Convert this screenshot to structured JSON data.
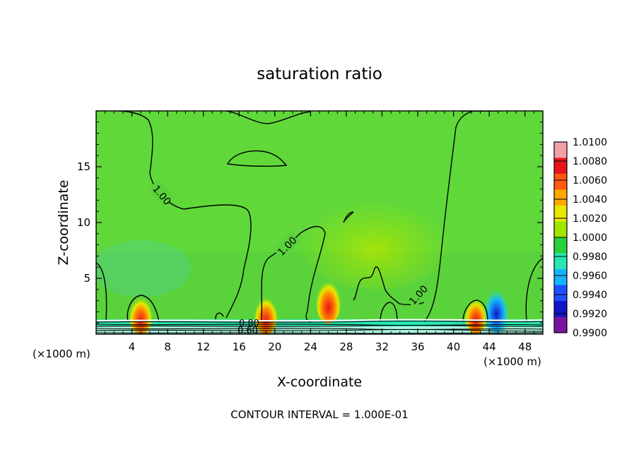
{
  "chart_data": {
    "type": "heatmap",
    "title": "saturation ratio",
    "xlabel": "X-coordinate",
    "ylabel": "Z-coordinate",
    "x_unit_left": "(×1000 m)",
    "x_unit_right": "(×1000 m)",
    "xlim": [
      0,
      50
    ],
    "ylim": [
      0,
      20
    ],
    "x_ticks": [
      "4",
      "8",
      "12",
      "16",
      "20",
      "24",
      "28",
      "32",
      "36",
      "40",
      "44",
      "48"
    ],
    "y_ticks": [
      "5",
      "10",
      "15"
    ],
    "colorbar_labels": [
      "1.0100",
      "1.0080",
      "1.0060",
      "1.0040",
      "1.0020",
      "1.0000",
      "0.9980",
      "0.9960",
      "0.9940",
      "0.9920",
      "0.9900"
    ],
    "colorbar_colors": [
      "#f4a0a8",
      "#e8141c",
      "#ff5a10",
      "#ffa800",
      "#e8e800",
      "#a0e600",
      "#28d23c",
      "#28e8b4",
      "#14b4ff",
      "#1e50ff",
      "#1414c8",
      "#7814a0"
    ],
    "contour_labels": [
      "1.00",
      "1.00",
      "1.00",
      "0.80",
      "0.60"
    ],
    "footer": "CONTOUR INTERVAL = 1.000E-01",
    "features": [
      {
        "x": 5.0,
        "z": 1.3,
        "value": 1.006
      },
      {
        "x": 19.0,
        "z": 1.3,
        "value": 1.006
      },
      {
        "x": 26.0,
        "z": 2.5,
        "value": 1.008
      },
      {
        "x": 42.5,
        "z": 1.3,
        "value": 1.005
      },
      {
        "x": 44.8,
        "z": 1.0,
        "value": 0.993
      }
    ]
  }
}
